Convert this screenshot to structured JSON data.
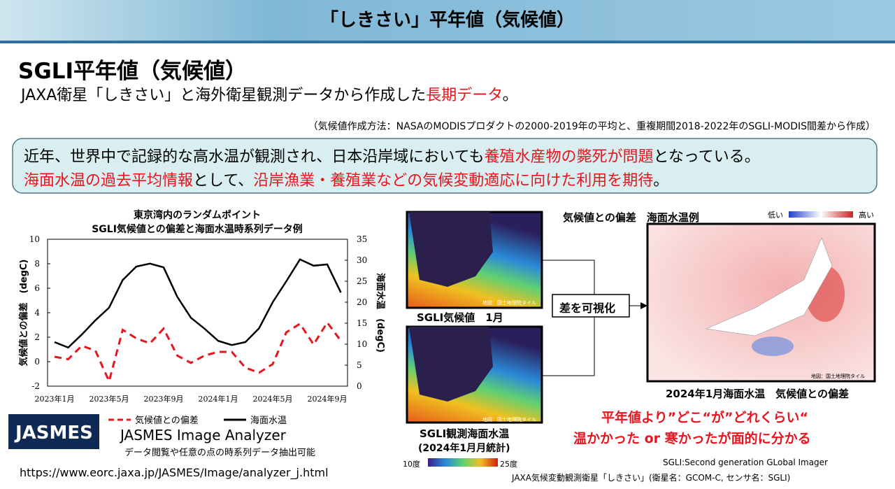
{
  "header": {
    "title": "「しきさい」平年値（気候値）"
  },
  "heading": "SGLI平年値（気候値）",
  "subtitle": [
    {
      "text": "JAXA衛星「しきさい」と海外衛星観測データから作成した"
    },
    {
      "text": "長期データ",
      "em": true
    },
    {
      "text": "。"
    }
  ],
  "note": "（気候値作成方法：NASAのMODISプロダクトの2000-2019年の平均と、重複期間2018-2022年のSGLI-MODIS間差から作成）",
  "box": {
    "lines": [
      [
        {
          "text": "近年、世界中で記録的な高水温が観測され、日本沿岸域においても"
        },
        {
          "text": "養殖水産物の斃死が問題",
          "em": true
        },
        {
          "text": "となっている。"
        }
      ],
      [
        {
          "text": "海面水温の過去平均情報",
          "em": true
        },
        {
          "text": "として、"
        },
        {
          "text": "沿岸漁業・養殖業などの気候変動適応に向けた利用を期待",
          "em": true
        },
        {
          "text": "。"
        }
      ]
    ]
  },
  "chart_data": {
    "type": "line",
    "title": [
      "東京湾内のランダムポイント",
      "SGLI気候値との偏差と海面水温時系列データ例"
    ],
    "y_label": "気候値との偏差　(degC)",
    "y2_label": "海面水温　(degC)",
    "categories": [
      "2023年1月",
      null,
      null,
      null,
      "2023年5月",
      null,
      null,
      null,
      "2023年9月",
      null,
      null,
      null,
      "2024年1月",
      null,
      null,
      null,
      "2024年5月",
      null,
      null,
      null,
      "2024年9月",
      null
    ],
    "ylim": [
      -2,
      10
    ],
    "yticks": [
      -2,
      0,
      2,
      4,
      6,
      8,
      10
    ],
    "y2lim": [
      0,
      35
    ],
    "y2ticks": [
      0,
      5,
      10,
      15,
      20,
      25,
      30,
      35
    ],
    "series": [
      {
        "name": "気候値との偏差",
        "color": "#e8141e",
        "dashed": true,
        "values": [
          0.4,
          0.2,
          1.3,
          0.9,
          -1.6,
          2.6,
          1.9,
          1.5,
          2.7,
          0.5,
          -0.1,
          0.5,
          0.8,
          0.8,
          -0.5,
          -0.9,
          -0.2,
          2.4,
          3.1,
          1.4,
          3.2,
          1.7
        ]
      },
      {
        "name": "海面水温",
        "color": "#000000",
        "axis": "y2",
        "values": [
          10.5,
          9.2,
          12.3,
          15.7,
          18.7,
          25.3,
          28.5,
          29.2,
          28.3,
          21.3,
          16.3,
          13.7,
          10.8,
          9.8,
          10.5,
          13.8,
          20,
          25,
          30.2,
          28.7,
          29,
          22.3
        ]
      }
    ]
  },
  "jasmes": {
    "logo": "JASMES",
    "name": "JASMES Image Analyzer",
    "desc": "データ閲覧や任意の点の時系列データ抽出可能",
    "url": "https://www.eorc.jaxa.jp/JASMES/Image/analyzer_j.html"
  },
  "maps": {
    "climate_caption": "SGLI気候値　1月",
    "observed_caption": [
      "SGLI観測海面水温",
      "(2024年1月月統計)"
    ],
    "scale_min": "10度",
    "scale_max": "25度",
    "credit": "地図：国土地理院タイル",
    "diff_button": "差を可視化",
    "anomaly_title": "気候値との偏差　海面水温例",
    "low": "低い",
    "high": "高い",
    "anomaly_caption": "2024年1月海面水温　気候値との偏差"
  },
  "message": [
    "平年値より”どこ“が”どれくらい“",
    "温かかった or 寒かったが面的に分かる"
  ],
  "footer": [
    "SGLI:Second generation GLobal Imager",
    "JAXA気候変動観測衛星「しきさい」(衛星名：GCOM-C, センサ名：SGLI)"
  ]
}
